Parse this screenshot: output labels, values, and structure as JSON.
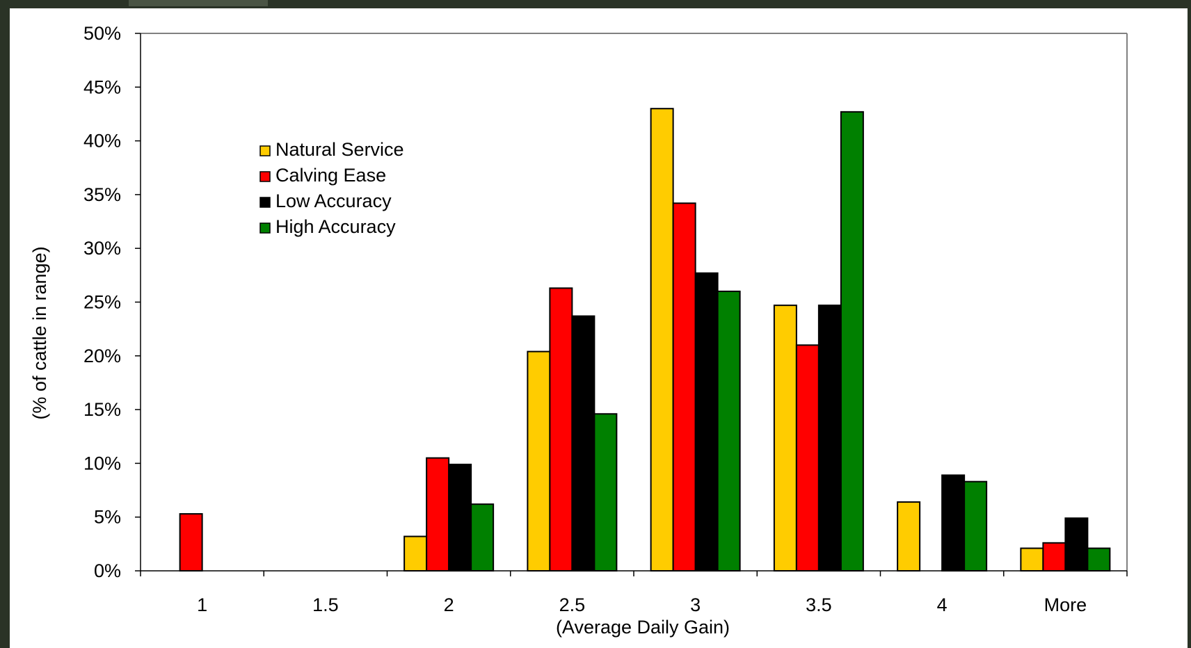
{
  "chart_data": {
    "type": "bar",
    "title": "",
    "xlabel": "(Average Daily Gain)",
    "ylabel": "(% of cattle in range)",
    "categories": [
      "1",
      "1.5",
      "2",
      "2.5",
      "3",
      "3.5",
      "4",
      "More"
    ],
    "ylim": [
      0,
      50
    ],
    "yticks": [
      "0%",
      "5%",
      "10%",
      "15%",
      "20%",
      "25%",
      "30%",
      "35%",
      "40%",
      "45%",
      "50%"
    ],
    "grid": false,
    "legend_position": "upper-left",
    "series": [
      {
        "name": "Natural Service",
        "color": "#FFCC00",
        "values": [
          0,
          0,
          3.2,
          20.4,
          43.0,
          24.7,
          6.4,
          2.1
        ]
      },
      {
        "name": "Calving Ease",
        "color": "#FF0000",
        "values": [
          5.3,
          0,
          10.5,
          26.3,
          34.2,
          21.0,
          0,
          2.6
        ]
      },
      {
        "name": "Low Accuracy",
        "color": "#000000",
        "values": [
          0,
          0,
          9.9,
          23.7,
          27.7,
          24.7,
          8.9,
          4.9
        ]
      },
      {
        "name": "High Accuracy",
        "color": "#008000",
        "values": [
          0,
          0,
          6.2,
          14.6,
          26.0,
          42.7,
          8.3,
          2.1
        ]
      }
    ]
  },
  "colors": {
    "background": "#2a3326",
    "panel": "#ffffff"
  }
}
